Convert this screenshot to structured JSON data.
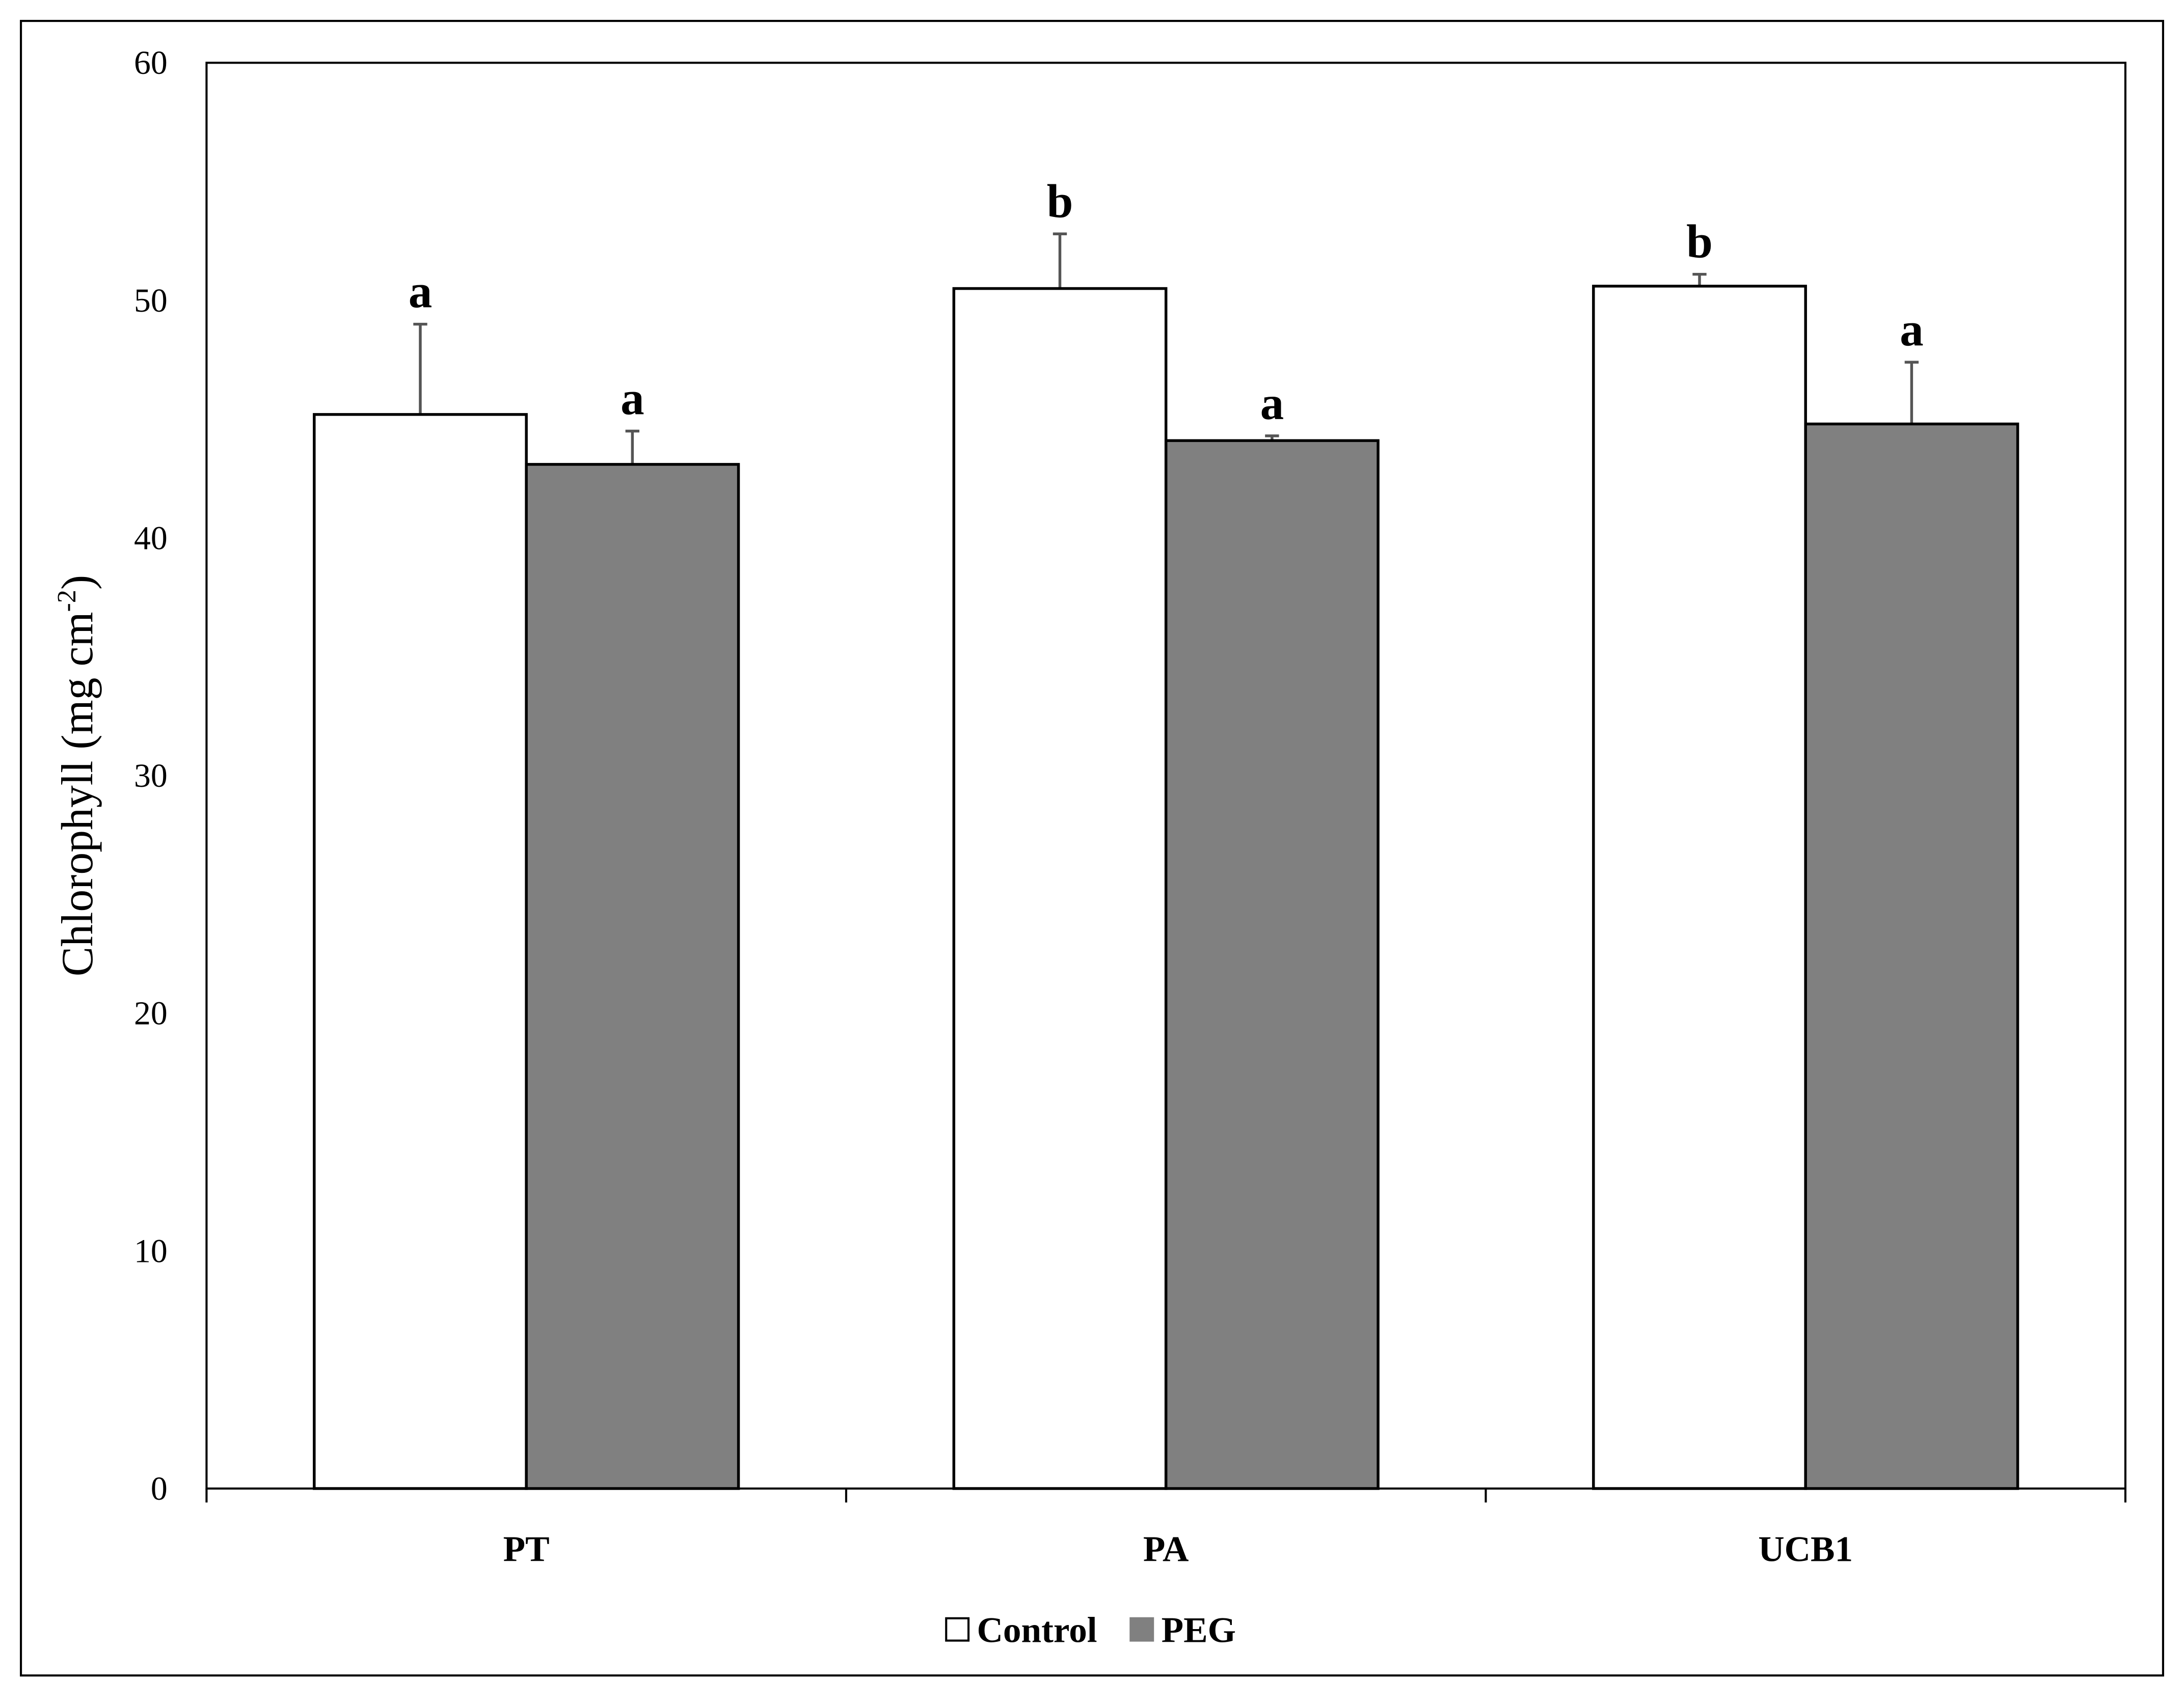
{
  "chart_data": {
    "type": "bar",
    "y_label": "Chlorophyll (mg cm",
    "y_label_superscript": "-2",
    "y_label_end": ")",
    "categories": [
      "PT",
      "PA",
      "UCB1"
    ],
    "series": [
      {
        "name": "Control",
        "color": "#ffffff",
        "values": [
          45.2,
          50.5,
          50.6
        ],
        "errors": [
          3.8,
          2.3,
          0.5
        ],
        "letters": [
          "a",
          "b",
          "b"
        ]
      },
      {
        "name": "PEG",
        "color": "#808080",
        "values": [
          43.1,
          44.1,
          44.8
        ],
        "errors": [
          1.4,
          0.2,
          2.6
        ],
        "letters": [
          "a",
          "a",
          "a"
        ]
      }
    ],
    "ylim": [
      0,
      60
    ],
    "yticks": [
      0,
      10,
      20,
      30,
      40,
      50,
      60
    ],
    "grid": false,
    "legend": "bottom"
  }
}
